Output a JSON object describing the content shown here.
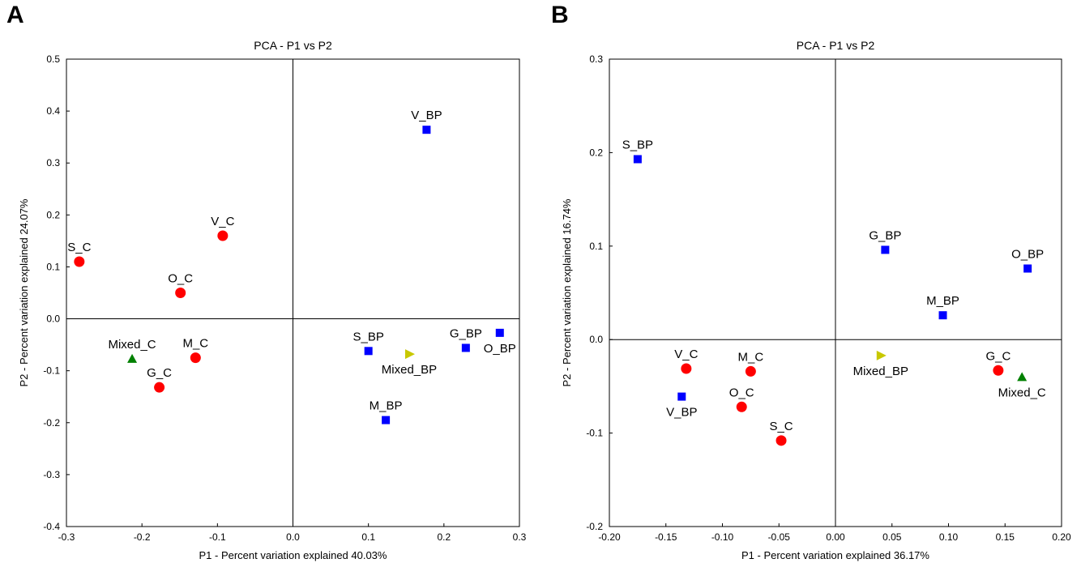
{
  "panel_labels": [
    "A",
    "B"
  ],
  "colors": {
    "red": "#ff0000",
    "blue": "#0000ff",
    "green": "#008000",
    "olive": "#c8c800",
    "axis": "#000000"
  },
  "chart_data": [
    {
      "type": "scatter",
      "title": "PCA - P1 vs P2",
      "xlabel": "P1 - Percent variation explained 40.03%",
      "ylabel": "P2 - Percent variation explained 24.07%",
      "xlim": [
        -0.3,
        0.3
      ],
      "ylim": [
        -0.4,
        0.5
      ],
      "xticks": [
        -0.3,
        -0.2,
        -0.1,
        0.0,
        0.1,
        0.2,
        0.3
      ],
      "xtick_labels": [
        "-0.3",
        "-0.2",
        "-0.1",
        "0.0",
        "0.1",
        "0.2",
        "0.3"
      ],
      "yticks": [
        -0.4,
        -0.3,
        -0.2,
        -0.1,
        0.0,
        0.1,
        0.2,
        0.3,
        0.4,
        0.5
      ],
      "ytick_labels": [
        "-0.4",
        "-0.3",
        "-0.2",
        "-0.1",
        "0.0",
        "0.1",
        "0.2",
        "0.3",
        "0.4",
        "0.5"
      ],
      "grid": false,
      "points": [
        {
          "label": "S_C",
          "x": -0.283,
          "y": 0.11,
          "marker": "circle",
          "color": "#ff0000",
          "label_pos": "above"
        },
        {
          "label": "V_C",
          "x": -0.093,
          "y": 0.16,
          "marker": "circle",
          "color": "#ff0000",
          "label_pos": "above"
        },
        {
          "label": "O_C",
          "x": -0.149,
          "y": 0.05,
          "marker": "circle",
          "color": "#ff0000",
          "label_pos": "above"
        },
        {
          "label": "M_C",
          "x": -0.129,
          "y": -0.075,
          "marker": "circle",
          "color": "#ff0000",
          "label_pos": "above"
        },
        {
          "label": "G_C",
          "x": -0.177,
          "y": -0.132,
          "marker": "circle",
          "color": "#ff0000",
          "label_pos": "above"
        },
        {
          "label": "Mixed_C",
          "x": -0.213,
          "y": -0.077,
          "marker": "triangle-up",
          "color": "#008000",
          "label_pos": "above"
        },
        {
          "label": "V_BP",
          "x": 0.177,
          "y": 0.364,
          "marker": "square",
          "color": "#0000ff",
          "label_pos": "above"
        },
        {
          "label": "S_BP",
          "x": 0.1,
          "y": -0.062,
          "marker": "square",
          "color": "#0000ff",
          "label_pos": "above"
        },
        {
          "label": "G_BP",
          "x": 0.229,
          "y": -0.056,
          "marker": "square",
          "color": "#0000ff",
          "label_pos": "above"
        },
        {
          "label": "O_BP",
          "x": 0.274,
          "y": -0.027,
          "marker": "square",
          "color": "#0000ff",
          "label_pos": "below"
        },
        {
          "label": "M_BP",
          "x": 0.123,
          "y": -0.195,
          "marker": "square",
          "color": "#0000ff",
          "label_pos": "above"
        },
        {
          "label": "Mixed_BP",
          "x": 0.154,
          "y": -0.068,
          "marker": "triangle-right",
          "color": "#c8c800",
          "label_pos": "below"
        }
      ]
    },
    {
      "type": "scatter",
      "title": "PCA - P1 vs P2",
      "xlabel": "P1 - Percent variation explained 36.17%",
      "ylabel": "P2 - Percent variation explained 16.74%",
      "xlim": [
        -0.2,
        0.2
      ],
      "ylim": [
        -0.2,
        0.3
      ],
      "xticks": [
        -0.2,
        -0.15,
        -0.1,
        -0.05,
        0.0,
        0.05,
        0.1,
        0.15,
        0.2
      ],
      "xtick_labels": [
        "-0.20",
        "-0.15",
        "-0.10",
        "-0.05",
        "0.00",
        "0.05",
        "0.10",
        "0.15",
        "0.20"
      ],
      "yticks": [
        -0.2,
        -0.1,
        0.0,
        0.1,
        0.2,
        0.3
      ],
      "ytick_labels": [
        "-0.2",
        "-0.1",
        "0.0",
        "0.1",
        "0.2",
        "0.3"
      ],
      "grid": false,
      "points": [
        {
          "label": "S_BP",
          "x": -0.175,
          "y": 0.193,
          "marker": "square",
          "color": "#0000ff",
          "label_pos": "above"
        },
        {
          "label": "G_BP",
          "x": 0.044,
          "y": 0.096,
          "marker": "square",
          "color": "#0000ff",
          "label_pos": "above"
        },
        {
          "label": "O_BP",
          "x": 0.17,
          "y": 0.076,
          "marker": "square",
          "color": "#0000ff",
          "label_pos": "above"
        },
        {
          "label": "M_BP",
          "x": 0.095,
          "y": 0.026,
          "marker": "square",
          "color": "#0000ff",
          "label_pos": "above"
        },
        {
          "label": "V_BP",
          "x": -0.136,
          "y": -0.061,
          "marker": "square",
          "color": "#0000ff",
          "label_pos": "below"
        },
        {
          "label": "Mixed_BP",
          "x": 0.04,
          "y": -0.017,
          "marker": "triangle-right",
          "color": "#c8c800",
          "label_pos": "below"
        },
        {
          "label": "V_C",
          "x": -0.132,
          "y": -0.031,
          "marker": "circle",
          "color": "#ff0000",
          "label_pos": "above"
        },
        {
          "label": "M_C",
          "x": -0.075,
          "y": -0.034,
          "marker": "circle",
          "color": "#ff0000",
          "label_pos": "above"
        },
        {
          "label": "O_C",
          "x": -0.083,
          "y": -0.072,
          "marker": "circle",
          "color": "#ff0000",
          "label_pos": "above"
        },
        {
          "label": "S_C",
          "x": -0.048,
          "y": -0.108,
          "marker": "circle",
          "color": "#ff0000",
          "label_pos": "above"
        },
        {
          "label": "G_C",
          "x": 0.144,
          "y": -0.033,
          "marker": "circle",
          "color": "#ff0000",
          "label_pos": "above"
        },
        {
          "label": "Mixed_C",
          "x": 0.165,
          "y": -0.04,
          "marker": "triangle-up",
          "color": "#008000",
          "label_pos": "below"
        }
      ]
    }
  ]
}
